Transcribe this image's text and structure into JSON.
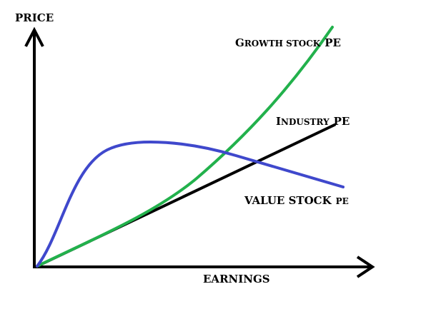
{
  "diagram": {
    "y_axis_label": "PRICE",
    "x_axis_label": "EARNINGS",
    "growth_label": {
      "initial": "G",
      "rest": "ROWTH STOCK",
      "tail": "PE"
    },
    "industry_label": {
      "initial": "I",
      "rest": "NDUSTRY",
      "tail": "PE"
    },
    "value_label": {
      "head": "VALUE STOCK",
      "tail": "PE"
    }
  },
  "colors": {
    "growth_curve": "#22b14c",
    "value_curve": "#3f48cc",
    "industry_line": "#000000",
    "axes": "#000000",
    "background": "#ffffff"
  }
}
